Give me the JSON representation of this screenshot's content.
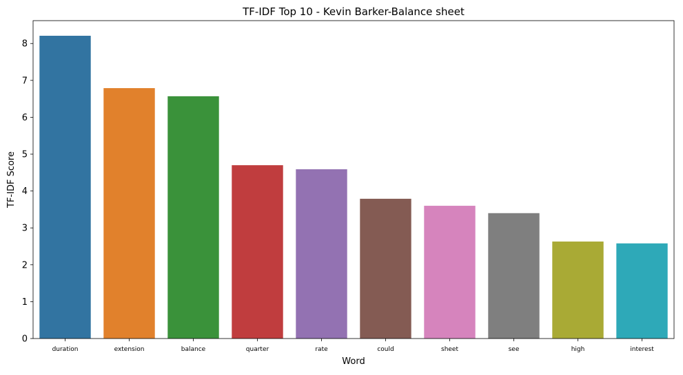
{
  "chart_data": {
    "type": "bar",
    "title": "TF-IDF Top 10 - Kevin Barker-Balance sheet",
    "xlabel": "Word",
    "ylabel": "TF-IDF Score",
    "categories": [
      "duration",
      "extension",
      "balance",
      "quarter",
      "rate",
      "could",
      "sheet",
      "see",
      "high",
      "interest"
    ],
    "values": [
      8.21,
      6.79,
      6.57,
      4.7,
      4.59,
      3.79,
      3.6,
      3.4,
      2.63,
      2.58
    ],
    "colors": [
      "#3274a1",
      "#e1812c",
      "#3a923a",
      "#c03d3e",
      "#9372b2",
      "#845b53",
      "#d684bd",
      "#7f7f7f",
      "#a9aa35",
      "#2ea9b8"
    ],
    "ylim": [
      0,
      8.62
    ],
    "yticks": [
      0,
      1,
      2,
      3,
      4,
      5,
      6,
      7,
      8
    ],
    "grid": false,
    "legend": "none"
  }
}
